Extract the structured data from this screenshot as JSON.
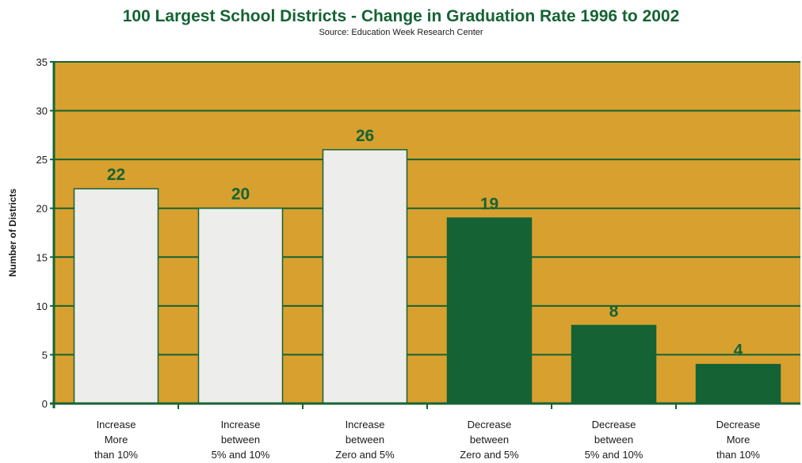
{
  "chart_data": {
    "type": "bar",
    "title": "100 Largest School Districts - Change in Graduation Rate 1996 to 2002",
    "subtitle": "Source: Education Week Research Center",
    "ylabel": "Number of Districts",
    "xlabel": "",
    "ylim": [
      0,
      35
    ],
    "yticks": [
      0,
      5,
      10,
      15,
      20,
      25,
      30,
      35
    ],
    "grid": true,
    "legend": "none",
    "categories": [
      "Increase More than 10%",
      "Increase between 5% and 10%",
      "Increase between Zero and 5%",
      "Decrease between Zero and 5%",
      "Decrease between 5% and 10%",
      "Decrease More than 10%"
    ],
    "category_lines": [
      [
        "Increase",
        "More",
        "than 10%"
      ],
      [
        "Increase",
        "between",
        "5% and 10%"
      ],
      [
        "Increase",
        "between",
        "Zero and 5%"
      ],
      [
        "Decrease",
        "between",
        "Zero and 5%"
      ],
      [
        "Decrease",
        "between",
        "5% and 10%"
      ],
      [
        "Decrease",
        "More",
        "than 10%"
      ]
    ],
    "values": [
      22,
      20,
      26,
      19,
      8,
      4
    ],
    "bar_colors": [
      "#ededec",
      "#ededec",
      "#ededec",
      "#156334",
      "#156334",
      "#156334"
    ],
    "colors": {
      "plot_background": "#d8a02e",
      "gridline": "#156334",
      "title": "#156334",
      "data_label": "#156334",
      "bar_outline": "#156334",
      "text": "#1a1a1a"
    }
  }
}
